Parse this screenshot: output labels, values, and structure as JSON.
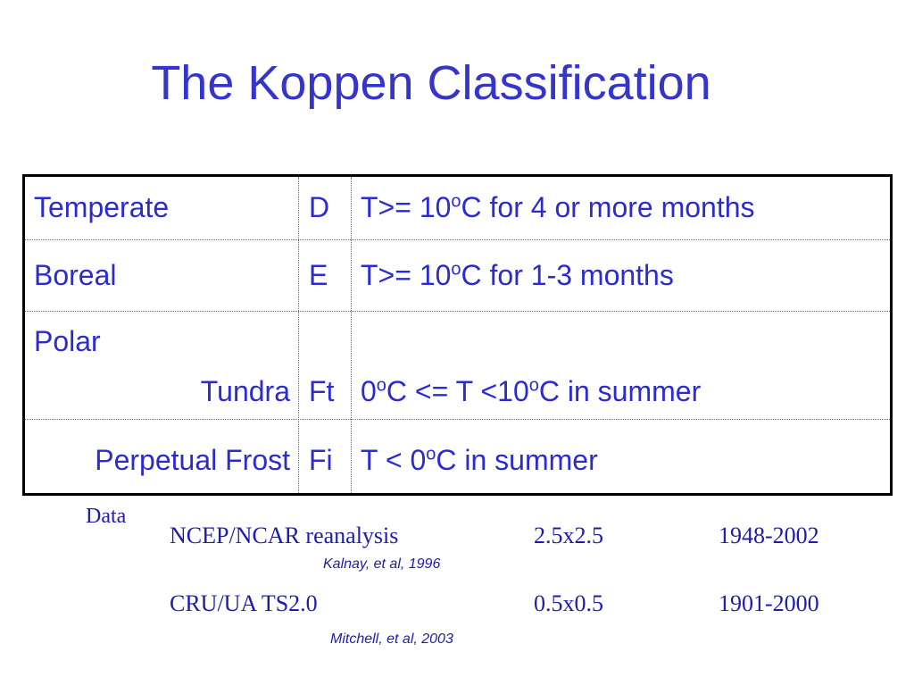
{
  "header": {
    "title": "The Koppen Classification"
  },
  "table": {
    "rows": [
      [
        [
          "Temperate"
        ],
        [
          "D"
        ],
        [
          "T>= 10",
          "o",
          "C for 4 or more months"
        ]
      ],
      [
        [
          "Boreal"
        ],
        [
          "E"
        ],
        [
          "T>= 10",
          "o",
          "C for 1-3 months"
        ]
      ],
      [
        [
          "Polar",
          "Tundra"
        ],
        [
          "Ft"
        ],
        [
          "0",
          "o",
          "C <= T <10",
          "o",
          "C in summer"
        ]
      ],
      [
        [
          "Perpetual Frost"
        ],
        [
          "Fi"
        ],
        [
          "T < 0",
          "o",
          "C in summer"
        ]
      ]
    ]
  },
  "data_section": {
    "label": "Data",
    "datasets": [
      {
        "name": "NCEP/NCAR reanalysis",
        "resolution": "2.5x2.5",
        "period": "1948-2002",
        "citation": "Kalnay, et al, 1996"
      },
      {
        "name": "CRU/UA TS2.0",
        "resolution": "0.5x0.5",
        "period": "1901-2000",
        "citation": "Mitchell, et al, 2003"
      }
    ]
  }
}
